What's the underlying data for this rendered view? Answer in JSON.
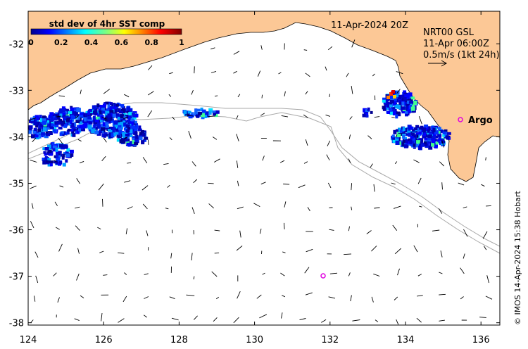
{
  "map": {
    "date_label": "11-Apr-2024 20Z",
    "product": {
      "line1": "NRT00 GSL",
      "line2": "11-Apr 06:00Z",
      "line3": "0.5m/s (1kt 24h)"
    },
    "credit": "© IMOS 14-Apr-2024 15:38 Hobart",
    "argo_label": "Argo",
    "colors": {
      "land": "#fcc896",
      "ocean": "#ffffff",
      "argo_marker": "#e000e0",
      "shelf_contour": "#a8a8a8",
      "vector": "#000000"
    }
  },
  "colorbar": {
    "title": "std dev of 4hr SST comp",
    "ticks": [
      "0",
      "0.2",
      "0.4",
      "0.6",
      "0.8",
      "1"
    ],
    "range": [
      0,
      1
    ],
    "colormap": "jet"
  },
  "axes": {
    "x_ticks": [
      "124",
      "126",
      "128",
      "130",
      "132",
      "134",
      "136"
    ],
    "y_ticks": [
      "-32",
      "-33",
      "-34",
      "-35",
      "-36",
      "-37",
      "-38"
    ],
    "xlim": [
      124,
      136.5
    ],
    "ylim": [
      -38.05,
      -31.3
    ]
  },
  "argo_floats": [
    {
      "lon": 135.55,
      "lat": -33.6,
      "labeled": true
    },
    {
      "lon": 131.85,
      "lat": -37.02,
      "labeled": false
    }
  ]
}
